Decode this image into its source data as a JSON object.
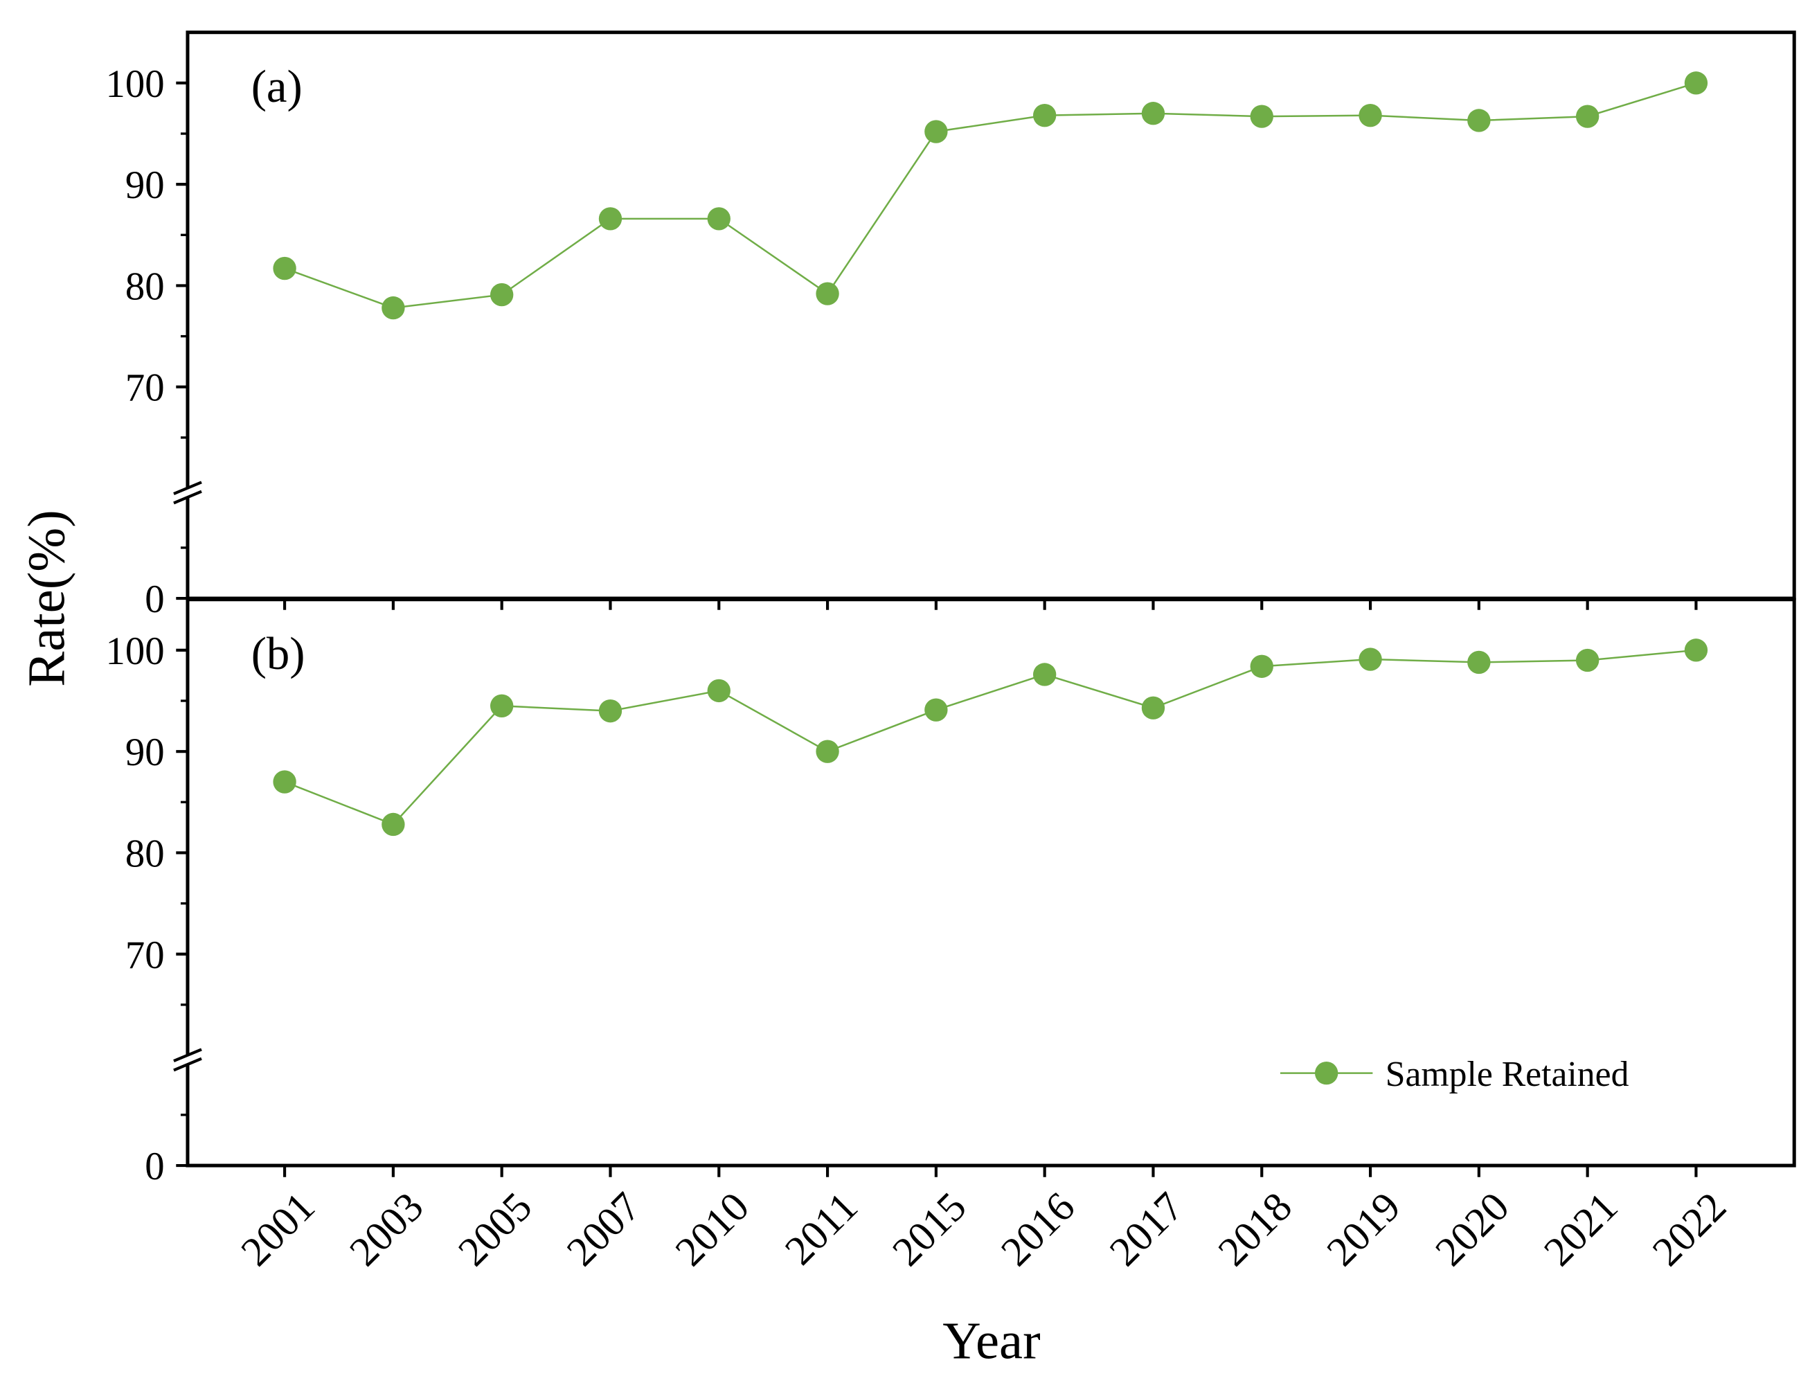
{
  "chart_data": {
    "type": "line",
    "x_label": "Year",
    "y_label": "Rate(%)",
    "categories": [
      "2001",
      "2003",
      "2005",
      "2007",
      "2010",
      "2011",
      "2015",
      "2016",
      "2017",
      "2018",
      "2019",
      "2020",
      "2021",
      "2022"
    ],
    "ylim": [
      0,
      105
    ],
    "ybreak": [
      10,
      60
    ],
    "yticks": [
      0,
      70,
      80,
      90,
      100
    ],
    "yminorticks": [
      5,
      65,
      75,
      85,
      95
    ],
    "series_name": "Sample Retained",
    "color": "#70ad47",
    "legend": "lower right",
    "panels": [
      {
        "label": "(a)",
        "values": [
          81.7,
          77.8,
          79.1,
          86.6,
          86.6,
          79.2,
          95.2,
          96.8,
          97.0,
          96.7,
          96.8,
          96.3,
          96.7,
          100
        ]
      },
      {
        "label": "(b)",
        "values": [
          87.0,
          82.8,
          94.5,
          94.0,
          96.0,
          90.0,
          94.1,
          97.6,
          94.3,
          98.4,
          99.1,
          98.8,
          99.0,
          100
        ]
      }
    ]
  }
}
